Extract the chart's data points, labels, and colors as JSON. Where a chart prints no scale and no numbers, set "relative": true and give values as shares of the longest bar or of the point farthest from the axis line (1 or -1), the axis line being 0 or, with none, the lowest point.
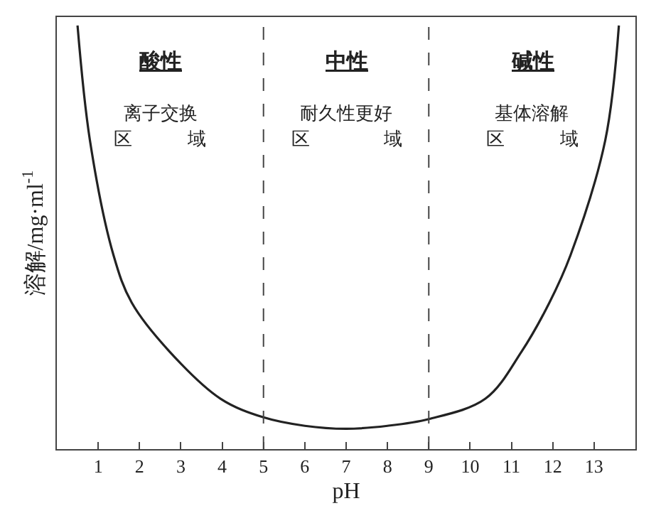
{
  "chart_data": {
    "type": "line",
    "relative": true,
    "xlabel": "pH",
    "ylabel": "溶解/mg·ml$^{-1}$",
    "x": [
      0.5,
      0.8,
      1.37,
      1.81,
      2.72,
      3.96,
      5,
      6,
      7,
      8,
      9,
      10.37,
      11.25,
      11.92,
      12.43,
      13.27,
      13.6
    ],
    "series": [
      {
        "color": "#222222",
        "values": [
          1.0,
          0.729,
          0.458,
          0.346,
          0.231,
          0.119,
          0.075,
          0.055,
          0.048,
          0.055,
          0.071,
          0.119,
          0.231,
          0.346,
          0.458,
          0.729,
          1.0
        ]
      }
    ],
    "xlim": [
      0,
      14
    ],
    "xticks": [
      1,
      2,
      3,
      4,
      5,
      6,
      7,
      8,
      9,
      10,
      11,
      12,
      13
    ],
    "ref_lines": [
      {
        "axis": "x",
        "value": 5,
        "line_style": "dashed",
        "color": "#444444"
      },
      {
        "axis": "x",
        "value": 9,
        "line_style": "dashed",
        "color": "#444444"
      }
    ],
    "annotations": [
      "酸性",
      "离子交换",
      "区　　　域",
      "中性",
      "耐久性更好",
      "区　　　　域",
      "碱性",
      "基体溶解",
      "区　　　域"
    ],
    "marker": "none",
    "line_style": "solid"
  }
}
